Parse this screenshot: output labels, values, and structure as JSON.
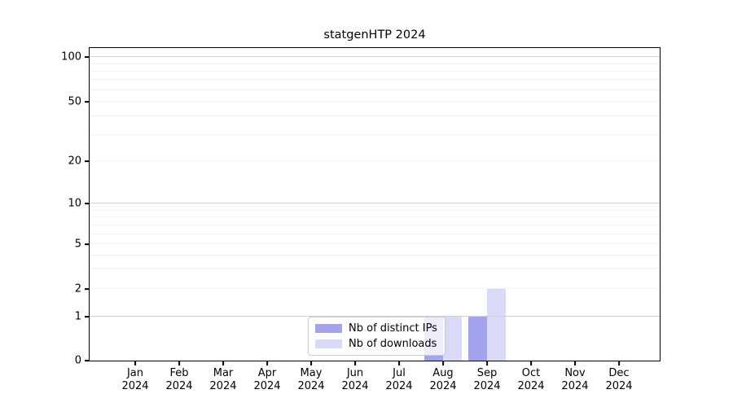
{
  "chart_data": {
    "type": "bar",
    "title": "statgenHTP 2024",
    "categories": [
      "Jan 2024",
      "Feb 2024",
      "Mar 2024",
      "Apr 2024",
      "May 2024",
      "Jun 2024",
      "Jul 2024",
      "Aug 2024",
      "Sep 2024",
      "Oct 2024",
      "Nov 2024",
      "Dec 2024"
    ],
    "series": [
      {
        "name": "Nb of distinct IPs",
        "color": "#a4a4ee",
        "values": [
          0,
          0,
          0,
          0,
          0,
          0,
          0,
          1,
          1,
          0,
          0,
          0
        ]
      },
      {
        "name": "Nb of downloads",
        "color": "#dadaf8",
        "values": [
          0,
          0,
          0,
          0,
          0,
          0,
          0,
          1,
          2,
          0,
          0,
          0
        ]
      }
    ],
    "y_ticks": [
      0,
      1,
      2,
      5,
      10,
      20,
      50,
      100
    ],
    "y_scale": "symlog",
    "ylim": [
      0,
      100
    ],
    "xlabel": "",
    "ylabel": "",
    "grid": "horizontal",
    "legend_position": "inside-bottom-center",
    "colors": {
      "major_grid": "#d0d0d0",
      "minor_grid": "#f1f1f1",
      "axis": "#000000",
      "background": "#ffffff"
    }
  }
}
